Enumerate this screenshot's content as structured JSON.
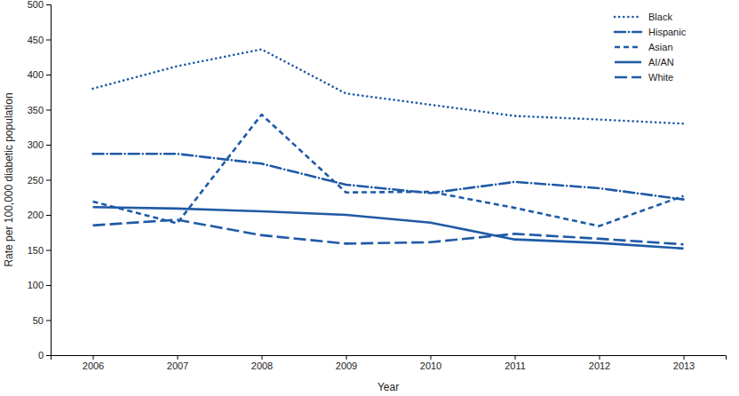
{
  "chart_data": {
    "type": "line",
    "x_label": "Year",
    "y_label": "Rate per 100,000 diabetic population",
    "x": [
      2006,
      2007,
      2008,
      2009,
      2010,
      2011,
      2012,
      2013
    ],
    "xlim": [
      2005.5,
      2013.5
    ],
    "xticks": [
      2006,
      2007,
      2008,
      2009,
      2010,
      2011,
      2012,
      2013
    ],
    "ylim": [
      0,
      500
    ],
    "yticks": [
      0,
      50,
      100,
      150,
      200,
      250,
      300,
      350,
      400,
      450,
      500
    ],
    "grid": false,
    "legend": "upper right",
    "series": [
      {
        "name": "Black",
        "color": "#1f5aa6",
        "line_style": "dotted",
        "values": [
          380,
          412,
          436,
          373,
          357,
          341,
          336,
          330
        ]
      },
      {
        "name": "Hispanic",
        "color": "#1f5aa6",
        "line_style": "dashdot",
        "values": [
          287,
          287,
          273,
          243,
          231,
          247,
          238,
          222
        ]
      },
      {
        "name": "Asian",
        "color": "#1f5aa6",
        "line_style": "dashed",
        "values": [
          219,
          188,
          343,
          232,
          233,
          210,
          184,
          227
        ]
      },
      {
        "name": "AI/AN",
        "color": "#1f5aa6",
        "line_style": "solid",
        "values": [
          211,
          209,
          205,
          200,
          189,
          165,
          160,
          152
        ]
      },
      {
        "name": "White",
        "color": "#1f5aa6",
        "line_style": "longdash",
        "values": [
          185,
          193,
          171,
          159,
          161,
          173,
          166,
          158
        ]
      }
    ]
  }
}
